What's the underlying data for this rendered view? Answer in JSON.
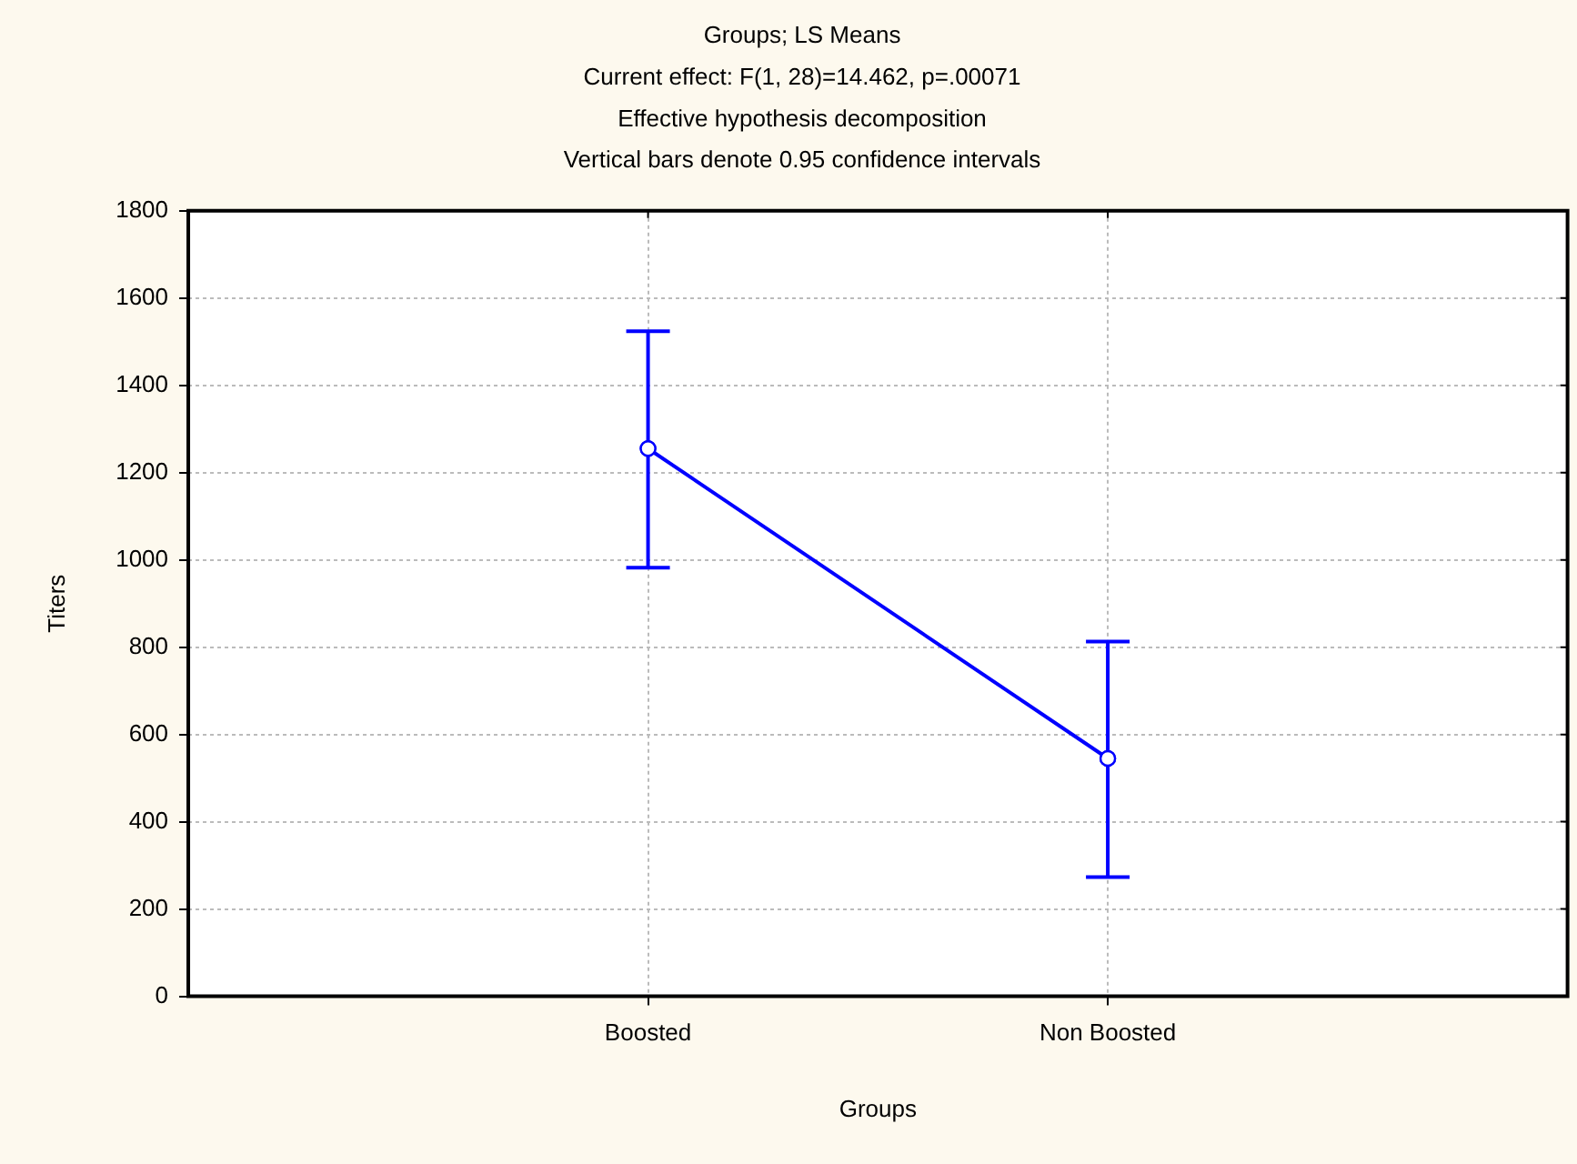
{
  "chart_data": {
    "type": "line",
    "title": "Groups; LS Means",
    "subtitle": "Current effect: F(1, 28)=14.462, p=.00071",
    "annotations": [
      "Effective hypothesis decomposition",
      "Vertical bars denote 0.95 confidence intervals"
    ],
    "xlabel": "Groups",
    "ylabel": "Titers",
    "categories": [
      "Boosted",
      "Non Boosted"
    ],
    "series": [
      {
        "color": "#0000ff",
        "values": [
          1255,
          545
        ],
        "errors": [
          [
            982,
            1524
          ],
          [
            273,
            813
          ]
        ]
      }
    ],
    "ylim": [
      0,
      1800
    ],
    "yticks": [
      0,
      200,
      400,
      600,
      800,
      1000,
      1200,
      1400,
      1600,
      1800
    ],
    "grid": true,
    "legend": false,
    "marker": "circle",
    "line_style": "solid"
  }
}
